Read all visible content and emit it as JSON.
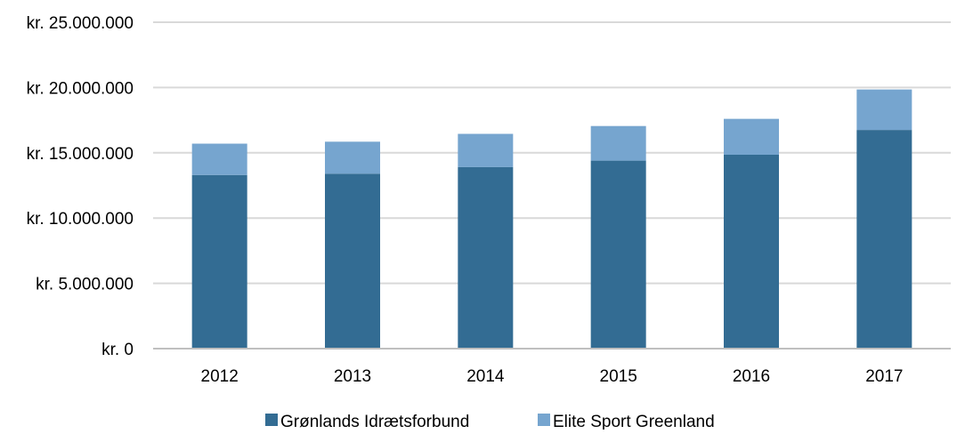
{
  "chart_data": {
    "type": "bar",
    "stacked": true,
    "categories": [
      "2012",
      "2013",
      "2014",
      "2015",
      "2016",
      "2017"
    ],
    "series": [
      {
        "name": "Grønlands Idrætsforbund",
        "values": [
          13300000,
          13400000,
          13900000,
          14400000,
          14850000,
          16750000
        ],
        "color": "#336c93"
      },
      {
        "name": "Elite Sport Greenland",
        "values": [
          2400000,
          2450000,
          2550000,
          2650000,
          2750000,
          3100000
        ],
        "color": "#76a5cf"
      }
    ],
    "ylim": [
      0,
      25000000
    ],
    "yticks": [
      0,
      5000000,
      10000000,
      15000000,
      20000000,
      25000000
    ],
    "ytick_labels": [
      "kr. 0",
      "kr. 5.000.000",
      "kr. 10.000.000",
      "kr. 15.000.000",
      "kr. 20.000.000",
      "kr. 25.000.000"
    ],
    "grid": true,
    "legend_position": "bottom",
    "title": "",
    "xlabel": "",
    "ylabel": ""
  },
  "colors": {
    "gridline": "#d9d9d9",
    "axis": "#bfbfbf",
    "text": "#000000"
  }
}
